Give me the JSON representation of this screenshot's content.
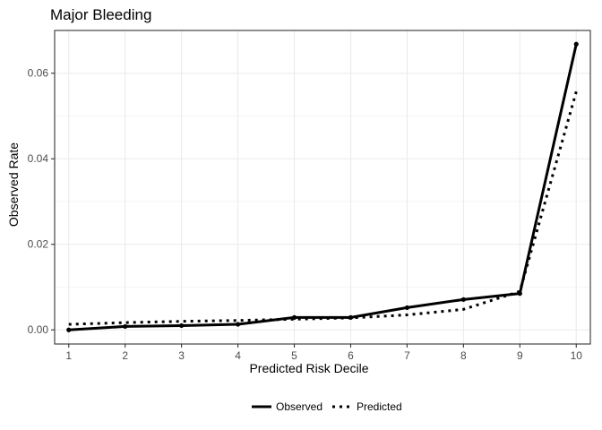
{
  "colors": {
    "background": "#ffffff",
    "grid": "#ebebeb",
    "frame": "#333333",
    "series": "#000000",
    "tick_text": "#4d4d4d"
  },
  "chart_data": {
    "type": "line",
    "title": "Major Bleeding",
    "xlabel": "Predicted Risk Decile",
    "ylabel": "Observed Rate",
    "x": [
      1,
      2,
      3,
      4,
      5,
      6,
      7,
      8,
      9,
      10
    ],
    "x_ticks": [
      "1",
      "2",
      "3",
      "4",
      "5",
      "6",
      "7",
      "8",
      "9",
      "10"
    ],
    "xlim": [
      0.75,
      10.25
    ],
    "ylim": [
      -0.0033,
      0.07
    ],
    "y_ticks": [
      0,
      0.02,
      0.04,
      0.06
    ],
    "y_tick_labels": [
      "0.00",
      "0.02",
      "0.04",
      "0.06"
    ],
    "grid": true,
    "legend_position": "bottom",
    "series": [
      {
        "name": "Observed",
        "line_style": "solid",
        "markers": true,
        "values": [
          0.0,
          0.0008,
          0.001,
          0.0013,
          0.0029,
          0.0029,
          0.0052,
          0.0071,
          0.0085,
          0.0668
        ]
      },
      {
        "name": "Predicted",
        "line_style": "dotted",
        "markers": false,
        "values": [
          0.0013,
          0.0017,
          0.002,
          0.0022,
          0.0025,
          0.0028,
          0.0035,
          0.0048,
          0.009,
          0.0557
        ]
      }
    ]
  }
}
